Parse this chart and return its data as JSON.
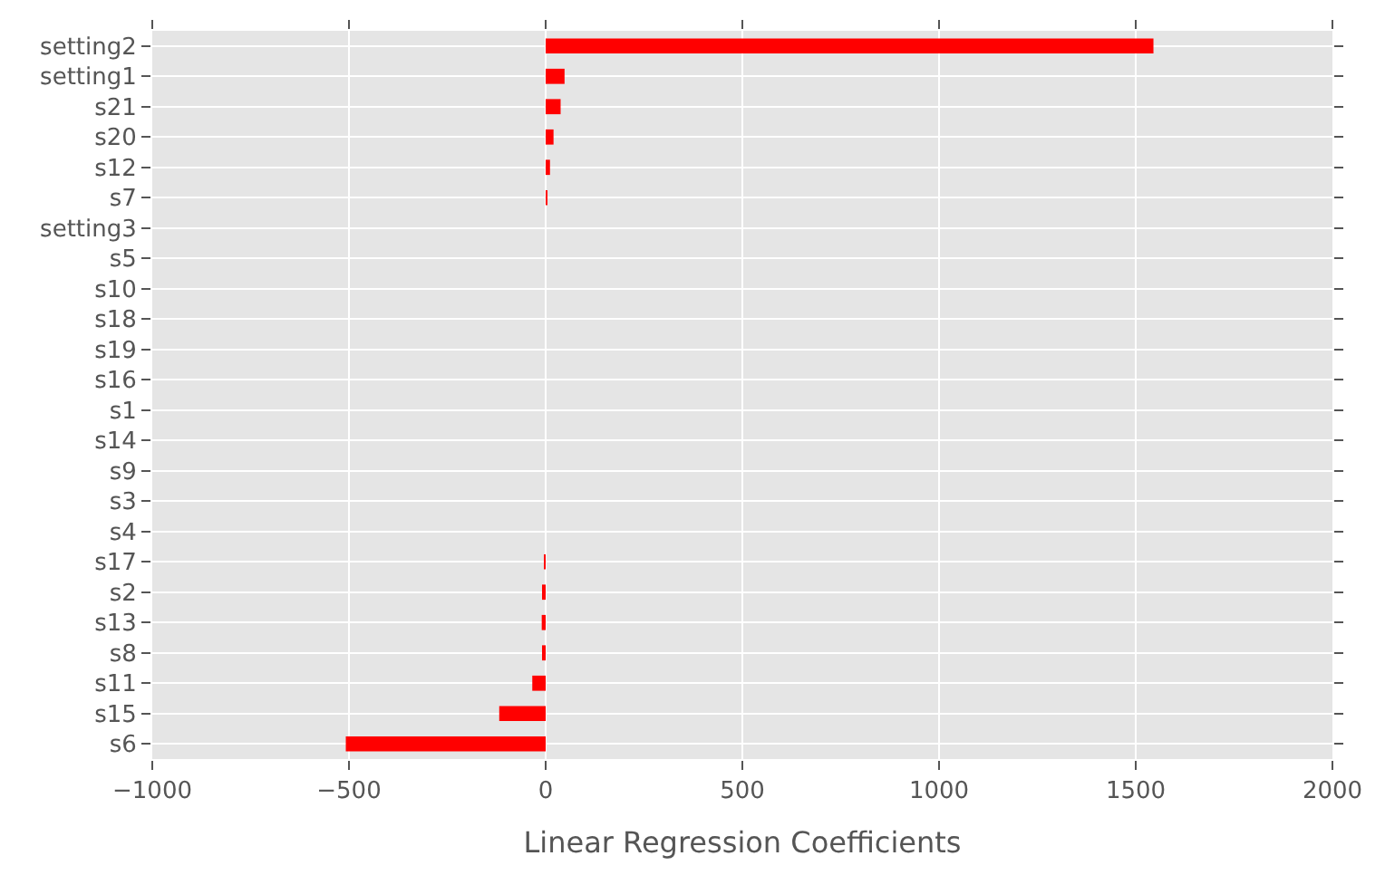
{
  "chart_data": {
    "type": "bar",
    "orientation": "horizontal",
    "xlabel": "Linear Regression Coefficients",
    "categories": [
      "setting2",
      "setting1",
      "s21",
      "s20",
      "s12",
      "s7",
      "setting3",
      "s5",
      "s10",
      "s18",
      "s19",
      "s16",
      "s1",
      "s14",
      "s9",
      "s3",
      "s4",
      "s17",
      "s2",
      "s13",
      "s8",
      "s11",
      "s15",
      "s6"
    ],
    "values": [
      1545,
      48,
      38,
      20,
      11,
      3,
      0,
      0,
      0,
      0,
      0,
      0,
      0,
      0,
      0,
      0,
      0,
      -3,
      -7,
      -10,
      -8,
      -34,
      -118,
      -508
    ],
    "color": "#ff0000",
    "xlim": [
      -1000,
      2000
    ],
    "xticks": [
      {
        "value": -1000,
        "label": "−1000"
      },
      {
        "value": -500,
        "label": "−500"
      },
      0,
      500,
      1000,
      1500,
      2000
    ],
    "grid": true
  }
}
